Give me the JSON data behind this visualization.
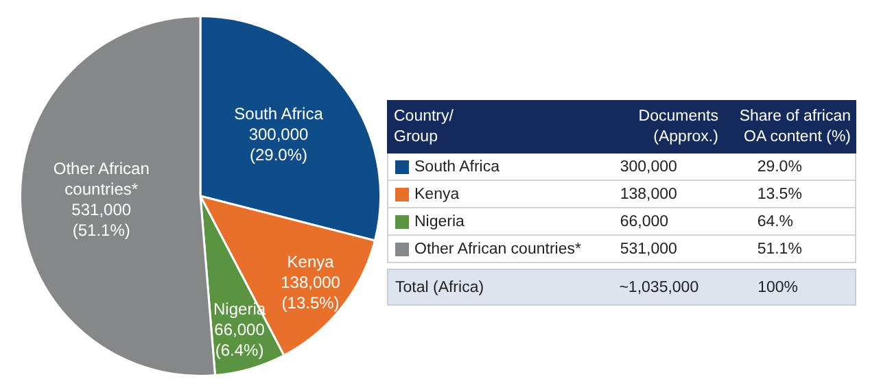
{
  "chart_data": [
    {
      "type": "pie",
      "categories": [
        "South Africa",
        "Kenya",
        "Nigeria",
        "Other African countries*"
      ],
      "values": [
        300000,
        138000,
        66000,
        531000
      ],
      "colors": [
        "#0e4c8a",
        "#e8702a",
        "#5a9440",
        "#858789"
      ],
      "value_labels": [
        "300,000\n(29.0%)",
        "138,000\n(13.5%)",
        "66,000\n(6.4%)",
        "531,000\n(51.1%)"
      ]
    },
    {
      "type": "other",
      "annotations": [
        "Country/\nGroup",
        "Documents\n(Approx.)",
        "Share of african\nOA content (%)",
        "South Africa",
        "300,000",
        "29.0%",
        "Kenya",
        "138,000",
        "13.5%",
        "Nigeria",
        "66,000",
        "64.%",
        "Other African countries*",
        "531,000",
        "51.1%",
        "Total (Africa)",
        "~1,035,000",
        "100%"
      ]
    }
  ]
}
